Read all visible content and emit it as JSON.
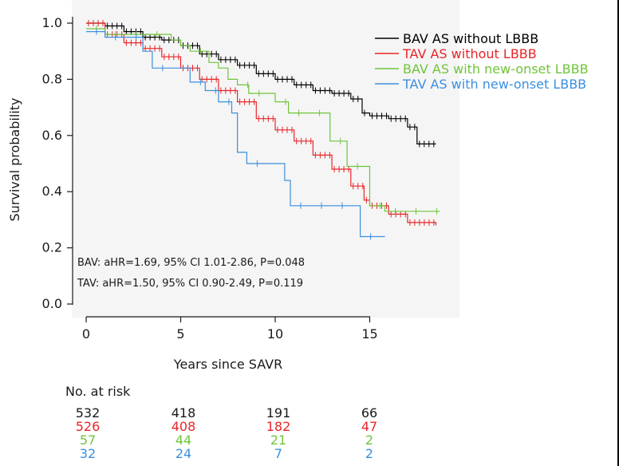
{
  "chart_data": {
    "type": "line",
    "subtype": "kaplan-meier",
    "ylabel": "Survival probability",
    "xlabel": "Years since SAVR",
    "xlim": [
      -1,
      20
    ],
    "ylim": [
      -0.05,
      1.05
    ],
    "x_ticks": [
      0,
      5,
      10,
      15
    ],
    "y_ticks": [
      0.0,
      0.2,
      0.4,
      0.6,
      0.8,
      1.0
    ],
    "y_tick_labels": [
      "0.0",
      "0.2",
      "0.4",
      "0.6",
      "0.8",
      "1.0"
    ],
    "grid": false,
    "legend_position": "top-right",
    "annotations": [
      "BAV: aHR=1.69, 95% CI 1.01-2.86, P=0.048",
      "TAV: aHR=1.50, 95% CI 0.90-2.49, P=0.119"
    ],
    "series": [
      {
        "name": "BAV AS without LBBB",
        "color": "#000000",
        "points": [
          [
            0,
            1.0
          ],
          [
            1,
            0.99
          ],
          [
            2,
            0.97
          ],
          [
            3,
            0.95
          ],
          [
            4,
            0.94
          ],
          [
            5,
            0.92
          ],
          [
            6,
            0.89
          ],
          [
            7,
            0.87
          ],
          [
            8,
            0.85
          ],
          [
            9,
            0.82
          ],
          [
            10,
            0.8
          ],
          [
            11,
            0.78
          ],
          [
            12,
            0.76
          ],
          [
            13,
            0.75
          ],
          [
            14,
            0.73
          ],
          [
            14.6,
            0.68
          ],
          [
            15,
            0.67
          ],
          [
            16,
            0.66
          ],
          [
            17,
            0.63
          ],
          [
            17.5,
            0.57
          ],
          [
            18.5,
            0.57
          ]
        ]
      },
      {
        "name": "TAV AS without LBBB",
        "color": "#e8262a",
        "points": [
          [
            0,
            1.0
          ],
          [
            1,
            0.96
          ],
          [
            2,
            0.93
          ],
          [
            3,
            0.91
          ],
          [
            4,
            0.88
          ],
          [
            5,
            0.84
          ],
          [
            6,
            0.8
          ],
          [
            7,
            0.76
          ],
          [
            8,
            0.72
          ],
          [
            9,
            0.66
          ],
          [
            10,
            0.62
          ],
          [
            11,
            0.58
          ],
          [
            12,
            0.53
          ],
          [
            13,
            0.48
          ],
          [
            14,
            0.42
          ],
          [
            14.7,
            0.37
          ],
          [
            15,
            0.35
          ],
          [
            16,
            0.32
          ],
          [
            17,
            0.29
          ],
          [
            18.5,
            0.28
          ]
        ]
      },
      {
        "name": "BAV AS with new-onset LBBB",
        "color": "#6fc53b",
        "points": [
          [
            0,
            0.98
          ],
          [
            1,
            0.96
          ],
          [
            4,
            0.96
          ],
          [
            4.5,
            0.94
          ],
          [
            5,
            0.92
          ],
          [
            5.5,
            0.9
          ],
          [
            6.5,
            0.86
          ],
          [
            7,
            0.84
          ],
          [
            7.5,
            0.8
          ],
          [
            8,
            0.78
          ],
          [
            8.6,
            0.75
          ],
          [
            10,
            0.72
          ],
          [
            10.7,
            0.68
          ],
          [
            12.7,
            0.68
          ],
          [
            12.9,
            0.58
          ],
          [
            13.8,
            0.49
          ],
          [
            14.8,
            0.49
          ],
          [
            15,
            0.35
          ],
          [
            15.8,
            0.33
          ],
          [
            18.7,
            0.33
          ]
        ]
      },
      {
        "name": "TAV AS with new-onset LBBB",
        "color": "#3b8fe0",
        "points": [
          [
            0,
            0.97
          ],
          [
            1,
            0.95
          ],
          [
            3,
            0.9
          ],
          [
            3.5,
            0.84
          ],
          [
            5,
            0.84
          ],
          [
            5.5,
            0.79
          ],
          [
            6.3,
            0.76
          ],
          [
            7,
            0.72
          ],
          [
            7.7,
            0.68
          ],
          [
            8,
            0.54
          ],
          [
            8.5,
            0.5
          ],
          [
            10,
            0.5
          ],
          [
            10.5,
            0.44
          ],
          [
            10.8,
            0.35
          ],
          [
            14,
            0.35
          ],
          [
            14.5,
            0.24
          ],
          [
            15.8,
            0.24
          ]
        ]
      }
    ],
    "at_risk": {
      "title": "No. at risk",
      "times": [
        0,
        5,
        10,
        15
      ],
      "rows": [
        {
          "color": "#1a1a1a",
          "values": [
            "532",
            "418",
            "191",
            "66"
          ]
        },
        {
          "color": "#e8262a",
          "values": [
            "526",
            "408",
            "182",
            "47"
          ]
        },
        {
          "color": "#6fc53b",
          "values": [
            "57",
            "44",
            "21",
            "2"
          ]
        },
        {
          "color": "#3b8fe0",
          "values": [
            "32",
            "24",
            "7",
            "2"
          ]
        }
      ]
    }
  }
}
